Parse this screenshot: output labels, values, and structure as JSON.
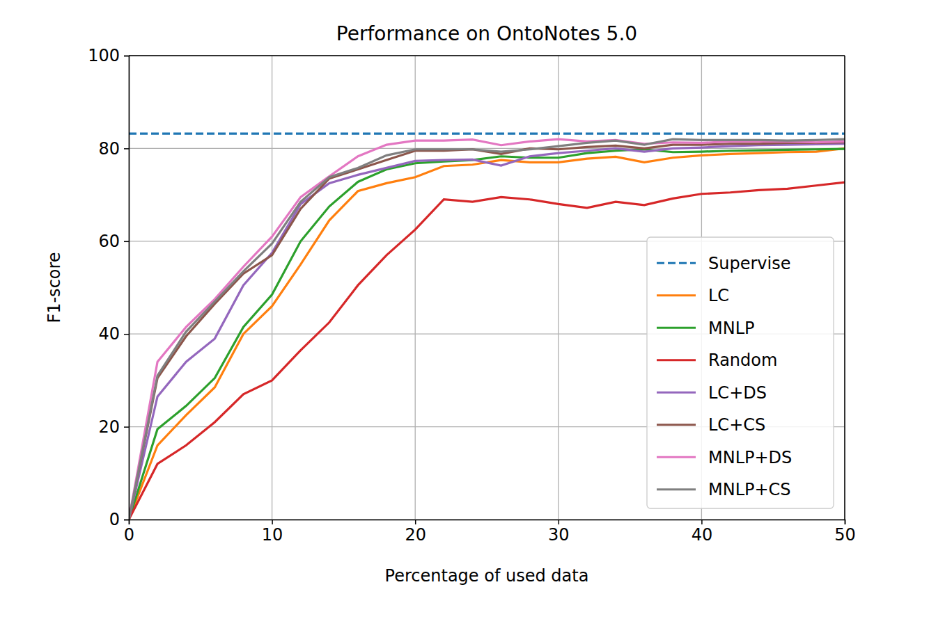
{
  "chart_data": {
    "type": "line",
    "title": "Performance on OntoNotes 5.0",
    "x_label": "Percentage of used data",
    "y_label": "F1-score",
    "x": [
      0,
      2,
      4,
      6,
      8,
      10,
      12,
      14,
      16,
      18,
      20,
      22,
      24,
      26,
      28,
      30,
      32,
      34,
      36,
      38,
      40,
      42,
      44,
      46,
      48,
      50
    ],
    "xlim": [
      0,
      50
    ],
    "xticks": [
      0,
      10,
      20,
      30,
      40,
      50
    ],
    "ylim": [
      0,
      100
    ],
    "yticks": [
      0,
      20,
      40,
      60,
      80,
      100
    ],
    "grid": true,
    "legend": "lower right",
    "series": [
      {
        "name": "Supervise",
        "color": "#1f77b4",
        "line_style": "dashed",
        "values": [
          83.2,
          83.2,
          83.2,
          83.2,
          83.2,
          83.2,
          83.2,
          83.2,
          83.2,
          83.2,
          83.2,
          83.2,
          83.2,
          83.2,
          83.2,
          83.2,
          83.2,
          83.2,
          83.2,
          83.2,
          83.2,
          83.2,
          83.2,
          83.2,
          83.2,
          83.2
        ]
      },
      {
        "name": "LC",
        "color": "#ff7f0e",
        "line_style": "solid",
        "values": [
          0,
          16,
          22.5,
          28.5,
          40,
          46,
          55,
          64.5,
          70.8,
          72.5,
          73.8,
          76.2,
          76.5,
          77.5,
          77,
          77,
          77.8,
          78.2,
          77,
          78,
          78.5,
          78.8,
          79,
          79.2,
          79.3,
          80
        ]
      },
      {
        "name": "MNLP",
        "color": "#2ca02c",
        "line_style": "solid",
        "values": [
          0,
          19.5,
          24.5,
          30.5,
          41.5,
          48.5,
          60,
          67.5,
          72.8,
          75.5,
          76.8,
          77.2,
          77.5,
          78.3,
          78,
          78,
          79,
          79.5,
          79.8,
          79.2,
          79.3,
          79.5,
          79.6,
          79.7,
          79.8,
          79.9
        ]
      },
      {
        "name": "Random",
        "color": "#d62728",
        "line_style": "solid",
        "values": [
          0,
          12,
          16,
          21,
          27,
          30,
          36.5,
          42.5,
          50.5,
          57,
          62.5,
          69,
          68.5,
          69.5,
          69,
          68,
          67.2,
          68.5,
          67.8,
          69.2,
          70.2,
          70.5,
          71,
          71.3,
          72,
          72.7
        ]
      },
      {
        "name": "LC+DS",
        "color": "#9467bd",
        "line_style": "solid",
        "values": [
          0,
          26.5,
          34,
          39,
          50.5,
          57.5,
          68,
          72.5,
          74.3,
          75.8,
          77.3,
          77.5,
          77.6,
          76.3,
          78.3,
          79,
          79.5,
          80,
          79.3,
          80,
          80.2,
          80.5,
          80.7,
          80.8,
          80.9,
          81
        ]
      },
      {
        "name": "LC+CS",
        "color": "#8c564b",
        "line_style": "solid",
        "values": [
          0,
          30.5,
          39.5,
          46.5,
          53,
          57,
          67,
          73.5,
          75.5,
          77.5,
          79.5,
          79.5,
          79.8,
          78.8,
          80,
          79.8,
          80.3,
          80.6,
          80,
          80.8,
          80.8,
          81,
          81,
          81.2,
          81.2,
          81.3
        ]
      },
      {
        "name": "MNLP+DS",
        "color": "#e377c2",
        "line_style": "solid",
        "values": [
          0,
          34,
          41.5,
          47.5,
          54.5,
          61,
          69.5,
          74,
          78.3,
          80.8,
          81.7,
          81.7,
          81.9,
          80.7,
          81.5,
          82,
          81.5,
          81.8,
          81,
          81.3,
          81.2,
          81.5,
          81.5,
          81.5,
          81.3,
          81.5
        ]
      },
      {
        "name": "MNLP+CS",
        "color": "#7f7f7f",
        "line_style": "solid",
        "values": [
          0,
          31,
          40.5,
          47,
          53.5,
          59.5,
          68.5,
          73.8,
          75.8,
          78.5,
          79.8,
          79.8,
          79.8,
          79.3,
          79.8,
          80.5,
          81.2,
          81.7,
          80.8,
          82,
          81.8,
          81.8,
          81.8,
          81.7,
          81.8,
          82
        ]
      }
    ]
  }
}
